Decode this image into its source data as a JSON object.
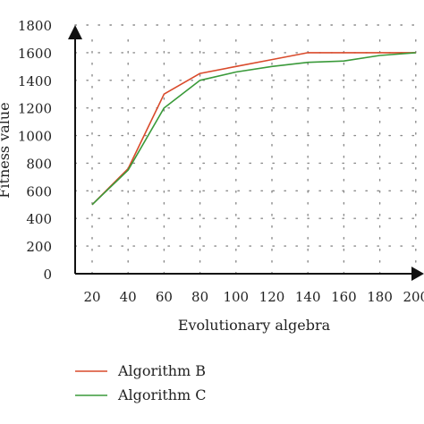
{
  "chart_data": {
    "type": "line",
    "xlabel": "Evolutionary algebra",
    "ylabel": "Fitness value",
    "x": [
      20,
      40,
      60,
      80,
      100,
      120,
      140,
      160,
      180,
      200
    ],
    "xticks": [
      "20",
      "40",
      "60",
      "80",
      "100",
      "120",
      "140",
      "160",
      "180",
      "200"
    ],
    "yticks": [
      "0",
      "200",
      "400",
      "600",
      "800",
      "1000",
      "1200",
      "1400",
      "1600",
      "1800"
    ],
    "ylim": [
      0,
      1800
    ],
    "grid": true,
    "legend_position": "bottom-left",
    "series": [
      {
        "name": "Algorithm B",
        "color": "#d94a2b",
        "values": [
          500,
          760,
          1300,
          1450,
          1500,
          1550,
          1600,
          1600,
          1600,
          1600
        ]
      },
      {
        "name": "Algorithm C",
        "color": "#3a9a3a",
        "values": [
          500,
          750,
          1200,
          1400,
          1460,
          1500,
          1530,
          1540,
          1580,
          1600
        ]
      }
    ]
  }
}
